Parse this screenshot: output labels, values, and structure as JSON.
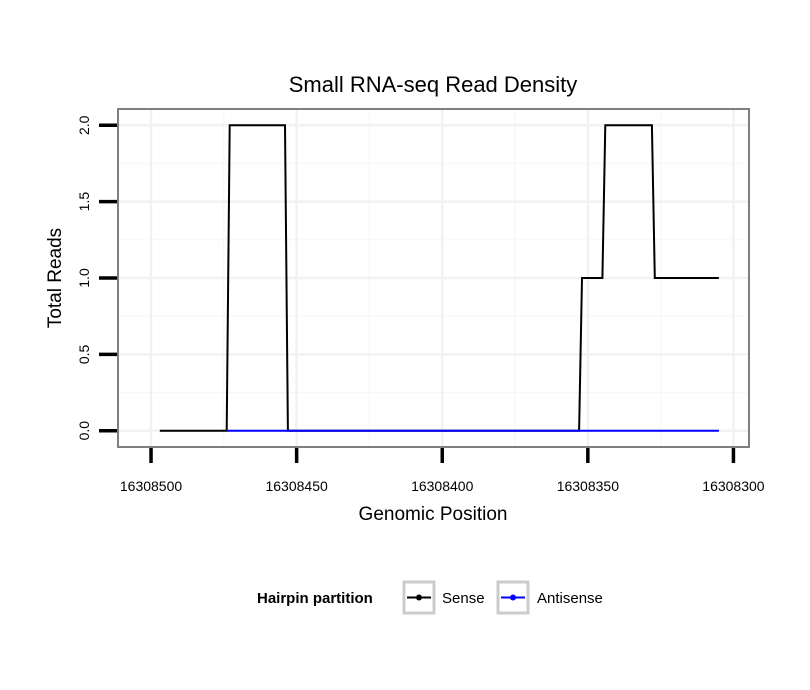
{
  "chart_data": {
    "type": "line",
    "title": "Small RNA-seq Read Density",
    "xlabel": "Genomic Position",
    "ylabel": "Total Reads",
    "x_reversed": true,
    "xlim": [
      16308511,
      16308295
    ],
    "ylim": [
      -0.1,
      2.1
    ],
    "x_ticks": [
      16308500,
      16308450,
      16308400,
      16308350,
      16308300
    ],
    "x_tick_labels": [
      "16308500",
      "16308450",
      "16308400",
      "16308350",
      "16308300"
    ],
    "y_ticks": [
      0.0,
      0.5,
      1.0,
      1.5,
      2.0
    ],
    "y_tick_labels": [
      "0.0",
      "0.5",
      "1.0",
      "1.5",
      "2.0"
    ],
    "grid": true,
    "legend": {
      "title": "Hairpin partition",
      "position": "bottom"
    },
    "series": [
      {
        "name": "Sense",
        "color": "#000000",
        "x": [
          16308497,
          16308474,
          16308473,
          16308454,
          16308453,
          16308353,
          16308352,
          16308345,
          16308344,
          16308328,
          16308327,
          16308305
        ],
        "values": [
          0,
          0,
          2,
          2,
          0,
          0,
          1,
          1,
          2,
          2,
          1,
          1
        ]
      },
      {
        "name": "Antisense",
        "color": "#0000ff",
        "x": [
          16308474,
          16308453,
          16308353,
          16308305
        ],
        "values": [
          0,
          0,
          0,
          0
        ]
      }
    ]
  }
}
